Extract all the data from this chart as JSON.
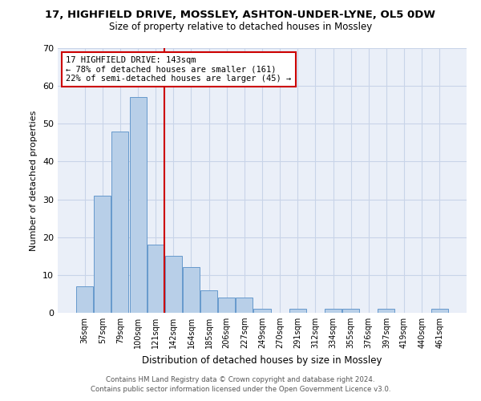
{
  "title_line1": "17, HIGHFIELD DRIVE, MOSSLEY, ASHTON-UNDER-LYNE, OL5 0DW",
  "title_line2": "Size of property relative to detached houses in Mossley",
  "xlabel": "Distribution of detached houses by size in Mossley",
  "ylabel": "Number of detached properties",
  "categories": [
    "36sqm",
    "57sqm",
    "79sqm",
    "100sqm",
    "121sqm",
    "142sqm",
    "164sqm",
    "185sqm",
    "206sqm",
    "227sqm",
    "249sqm",
    "270sqm",
    "291sqm",
    "312sqm",
    "334sqm",
    "355sqm",
    "376sqm",
    "397sqm",
    "419sqm",
    "440sqm",
    "461sqm"
  ],
  "values": [
    7,
    31,
    48,
    57,
    18,
    15,
    12,
    6,
    4,
    4,
    1,
    0,
    1,
    0,
    1,
    1,
    0,
    1,
    0,
    0,
    1
  ],
  "bar_color": "#b8cfe8",
  "bar_edge_color": "#6699cc",
  "vline_color": "#cc0000",
  "annotation_line1": "17 HIGHFIELD DRIVE: 143sqm",
  "annotation_line2": "← 78% of detached houses are smaller (161)",
  "annotation_line3": "22% of semi-detached houses are larger (45) →",
  "annotation_box_color": "#cc0000",
  "ylim": [
    0,
    70
  ],
  "yticks": [
    0,
    10,
    20,
    30,
    40,
    50,
    60,
    70
  ],
  "grid_color": "#c8d4e8",
  "bg_color": "#eaeff8",
  "footer1": "Contains HM Land Registry data © Crown copyright and database right 2024.",
  "footer2": "Contains public sector information licensed under the Open Government Licence v3.0."
}
